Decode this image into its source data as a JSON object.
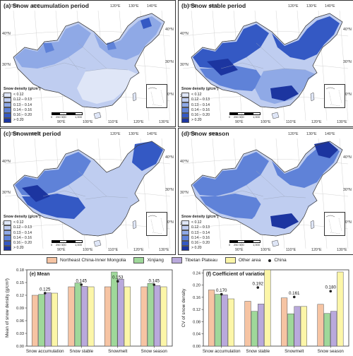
{
  "maps": {
    "a": {
      "title": "(a) Snow accumulation period"
    },
    "b": {
      "title": "(b) Snow stable period"
    },
    "c": {
      "title": "(c) Snowmelt period"
    },
    "d": {
      "title": "(d) Snow season"
    },
    "lon_top": [
      "70°E",
      "80°E",
      "90°E",
      "100°E",
      "110°E",
      "120°E",
      "130°E",
      "140°E"
    ],
    "lon_bottom": [
      "90°E",
      "100°E",
      "110°E",
      "120°E",
      "130°E"
    ],
    "lat": [
      "40°N",
      "30°N",
      "20°N"
    ],
    "scale_labels": [
      "0",
      "250",
      "500",
      "1,000"
    ],
    "legend": {
      "title": "Snow density (g/cm³)",
      "classes": [
        {
          "label": "< 0.12",
          "color": "#dfe6f7"
        },
        {
          "label": "0.12 – 0.13",
          "color": "#bfcdf0"
        },
        {
          "label": "0.13 – 0.14",
          "color": "#8fa9e6"
        },
        {
          "label": "0.14 – 0.16",
          "color": "#5f82d8"
        },
        {
          "label": "0.16 – 0.20",
          "color": "#3459c4"
        },
        {
          "label": "> 0.20",
          "color": "#1c35a0"
        }
      ]
    }
  },
  "series_legend": {
    "items": [
      "Northeast China-Inner Mongolia",
      "Xinjiang",
      "Tibetan Plateau",
      "Other area"
    ],
    "colors": [
      "#f6c4a3",
      "#9fd89a",
      "#b9a9dc",
      "#fcf6a8"
    ],
    "china_label": "China"
  },
  "chart_data": [
    {
      "type": "bar",
      "title": "(e) Mean",
      "ylabel": "Mean of snow density (g/cm³)",
      "categories": [
        "Snow accumulation",
        "Snow stable",
        "Snowmelt",
        "Snow season"
      ],
      "series": [
        {
          "name": "Northeast China-Inner Mongolia",
          "values": [
            0.12,
            0.14,
            0.14,
            0.14
          ]
        },
        {
          "name": "Xinjiang",
          "values": [
            0.122,
            0.149,
            0.175,
            0.148
          ]
        },
        {
          "name": "Tibetan Plateau",
          "values": [
            0.126,
            0.141,
            0.158,
            0.143
          ]
        },
        {
          "name": "Other area",
          "values": [
            0.125,
            0.14,
            0.14,
            0.14
          ]
        }
      ],
      "china": {
        "name": "China",
        "values": [
          0.125,
          0.145,
          0.153,
          0.145
        ],
        "labels": [
          "0.125",
          "0.145",
          "0.153",
          "0.145"
        ]
      },
      "ylim": [
        0.0,
        0.18
      ],
      "yticks": [
        "0.00",
        "0.03",
        "0.06",
        "0.09",
        "0.12",
        "0.15",
        "0.18"
      ]
    },
    {
      "type": "bar",
      "title": "(f) Coefficient of variation",
      "ylabel": "CV of snow density",
      "categories": [
        "Snow accumulation",
        "Snow stable",
        "Snowmelt",
        "Snow season"
      ],
      "series": [
        {
          "name": "Northeast China-Inner Mongolia",
          "values": [
            0.184,
            0.147,
            0.158,
            0.137
          ]
        },
        {
          "name": "Xinjiang",
          "values": [
            0.17,
            0.114,
            0.106,
            0.107
          ]
        },
        {
          "name": "Tibetan Plateau",
          "values": [
            0.168,
            0.138,
            0.13,
            0.114
          ]
        },
        {
          "name": "Other area",
          "values": [
            0.155,
            0.25,
            0.13,
            0.243
          ]
        }
      ],
      "china": {
        "name": "China",
        "values": [
          0.17,
          0.192,
          0.161,
          0.18
        ],
        "labels": [
          "0.170",
          "0.192",
          "0.161",
          "0.180"
        ]
      },
      "ylim": [
        0.0,
        0.25
      ],
      "yticks": [
        "0.00",
        "0.04",
        "0.08",
        "0.12",
        "0.16",
        "0.20",
        "0.24"
      ]
    }
  ]
}
